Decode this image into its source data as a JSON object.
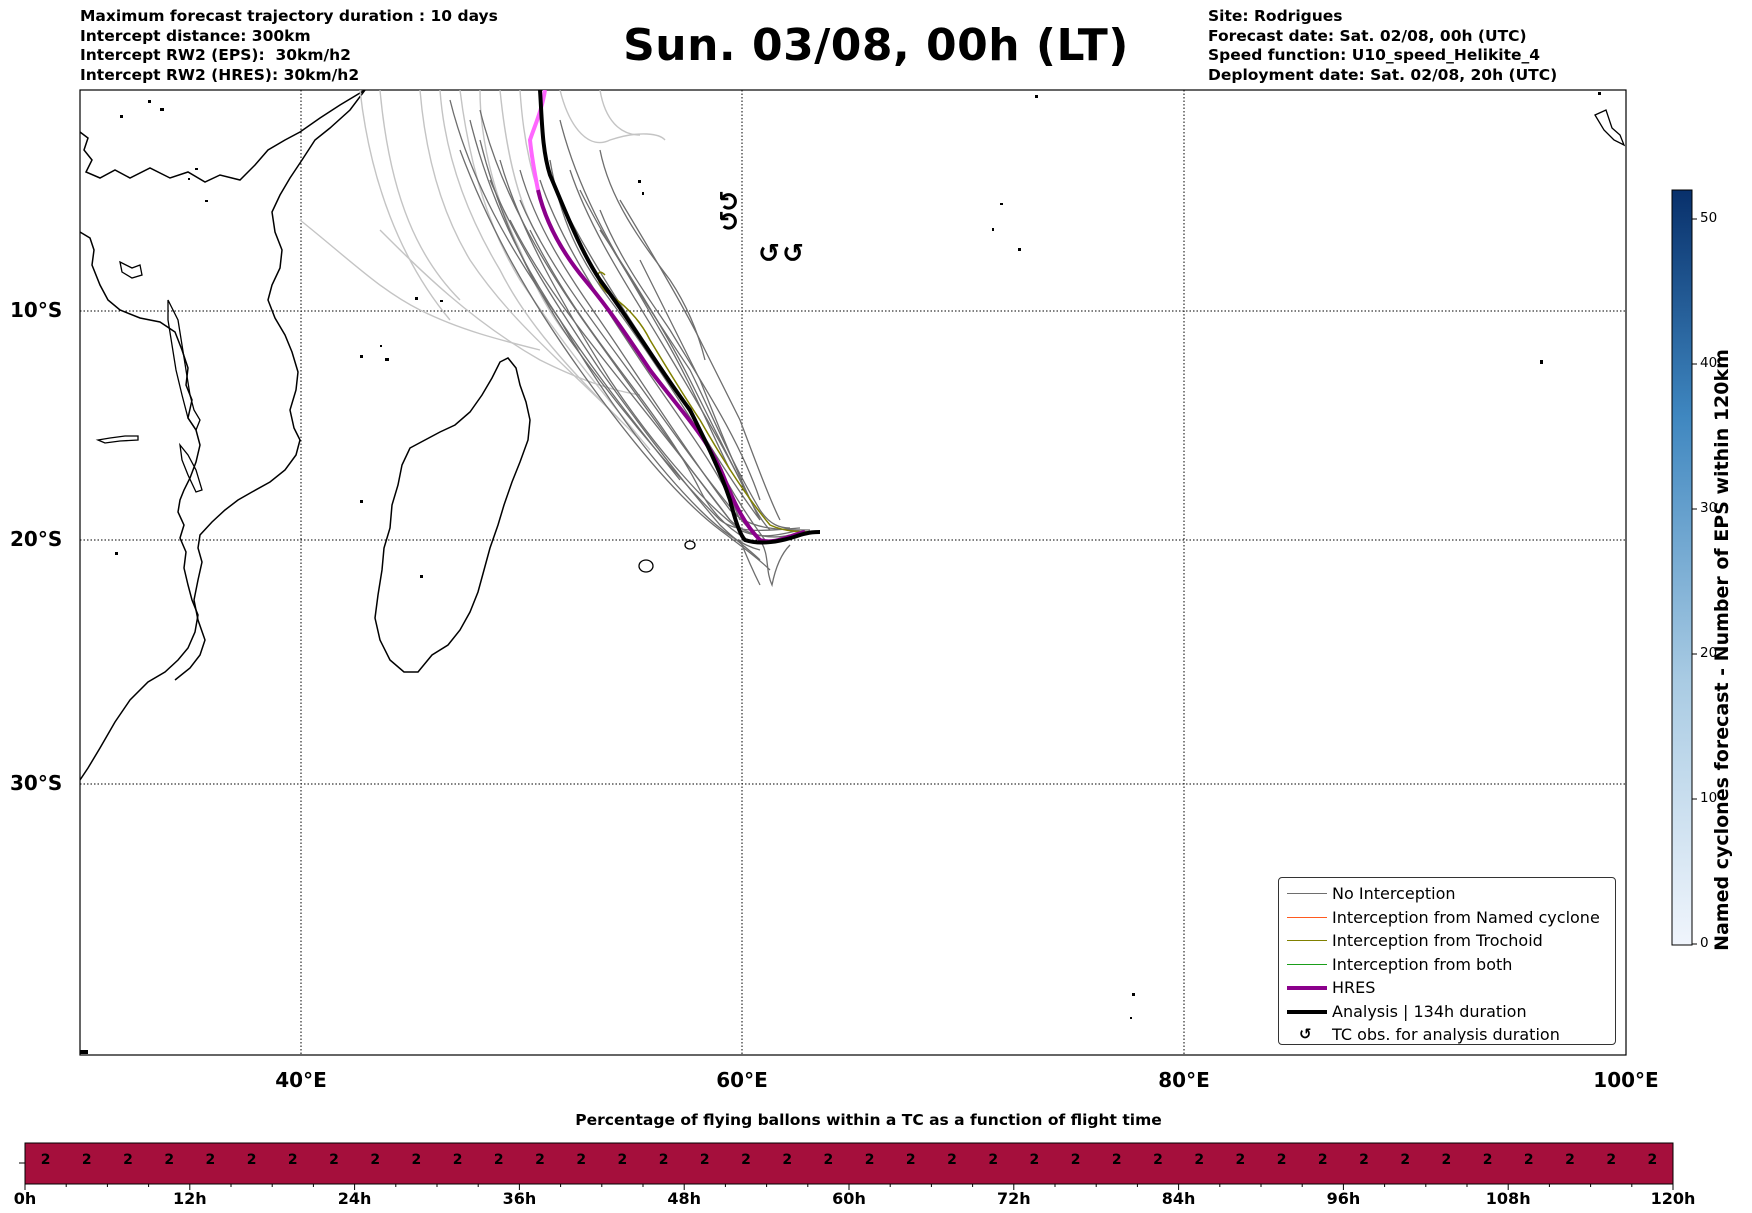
{
  "header_left": {
    "line1": "Maximum forecast trajectory duration : 10 days",
    "line2": "Intercept distance: 300km",
    "line3": "Intercept RW2 (EPS):  30km/h2",
    "line4": "Intercept RW2 (HRES): 30km/h2"
  },
  "title": "Sun. 03/08, 00h (LT)",
  "header_right": {
    "line1": "Site: Rodrigues",
    "line2": "Forecast date: Sat. 02/08, 00h (UTC)",
    "line3": "Speed function: U10_speed_Helikite_4",
    "line4": "Deployment date: Sat. 02/08, 20h (UTC)"
  },
  "map": {
    "lat_labels": [
      "10°S",
      "20°S",
      "30°S"
    ],
    "lon_labels": [
      "40°E",
      "60°E",
      "80°E",
      "100°E"
    ],
    "tc_symbol": "↺",
    "colors": {
      "no_interception": "#6e6e6e",
      "named_cyclone": "#ff5a1f",
      "trochoid": "#808000",
      "both": "#1a9e1a",
      "hres": "#8b008b",
      "analysis": "#000000"
    }
  },
  "legend": {
    "no_interception": "No Interception",
    "named_cyclone": "Interception from Named cyclone",
    "trochoid": "Interception from Trochoid",
    "both": "Interception from both",
    "hres": "HRES",
    "analysis": "Analysis | 134h duration",
    "tc_obs": "TC obs. for analysis duration",
    "tc_obs_symbol": "↺"
  },
  "colorbar": {
    "label": "Named cyclones forecast - Number of EPS within 120km",
    "ticks": [
      "0",
      "10",
      "20",
      "30",
      "40",
      "50"
    ],
    "min": 0,
    "max": 52,
    "color_low": "#e8f0fa",
    "color_high": "#08306b"
  },
  "bottom_panel": {
    "title": "Percentage of flying ballons within a TC as a function of flight time",
    "bar_color": "#a50f3c",
    "percentages": [
      "2",
      "2",
      "2",
      "2",
      "2",
      "2",
      "2",
      "2",
      "2",
      "2",
      "2",
      "2",
      "2",
      "2",
      "2",
      "2",
      "2",
      "2",
      "2",
      "2",
      "2",
      "2",
      "2",
      "2",
      "2",
      "2",
      "2",
      "2",
      "2",
      "2",
      "2",
      "2",
      "2",
      "2",
      "2",
      "2",
      "2",
      "2",
      "2",
      "2"
    ],
    "hour_labels": [
      "0h",
      "12h",
      "24h",
      "36h",
      "48h",
      "60h",
      "72h",
      "84h",
      "96h",
      "108h",
      "120h"
    ]
  }
}
